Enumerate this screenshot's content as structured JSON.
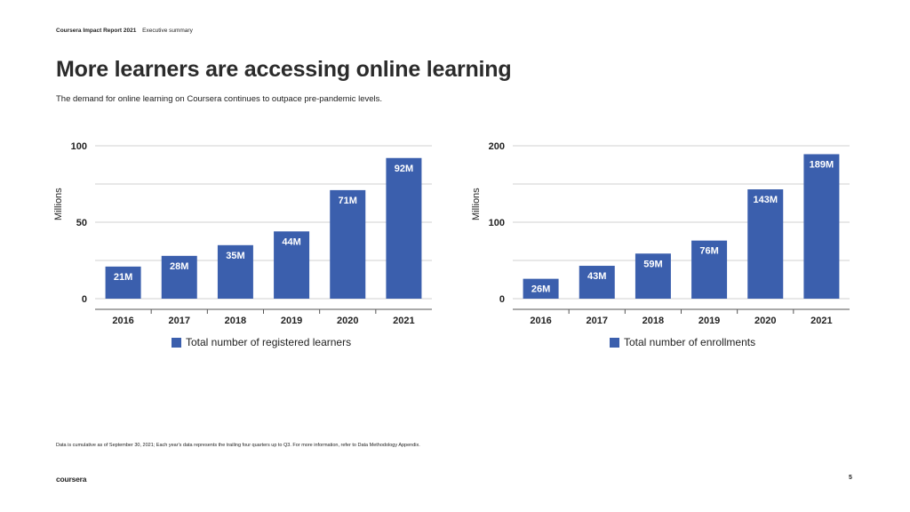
{
  "header": {
    "report": "Coursera Impact Report 2021",
    "section": "Executive summary"
  },
  "title": "More learners are accessing online learning",
  "subtitle": "The demand for online learning on Coursera continues to outpace pre-pandemic levels.",
  "footnote": "Data is cumulative as of September 30, 2021; Each year's data represents the trailing four quarters up to Q3. For more information, refer to Data Methodology Appendix.",
  "logo": "coursera",
  "page_number": "5",
  "colors": {
    "bar": "#3b5fad",
    "grid": "#d0d0d0",
    "axis": "#555555",
    "text": "#222222"
  },
  "chart_data": [
    {
      "type": "bar",
      "categories": [
        "2016",
        "2017",
        "2018",
        "2019",
        "2020",
        "2021"
      ],
      "series": [
        {
          "name": "Total number of registered learners",
          "values": [
            21,
            28,
            35,
            44,
            71,
            92
          ]
        }
      ],
      "data_labels": [
        "21M",
        "28M",
        "35M",
        "44M",
        "71M",
        "92M"
      ],
      "ylabel": "Millions",
      "yticks": [
        0,
        50,
        100
      ],
      "ylim": [
        0,
        100
      ],
      "grid": true,
      "legend": "bottom"
    },
    {
      "type": "bar",
      "categories": [
        "2016",
        "2017",
        "2018",
        "2019",
        "2020",
        "2021"
      ],
      "series": [
        {
          "name": "Total number of enrollments",
          "values": [
            26,
            43,
            59,
            76,
            143,
            189
          ]
        }
      ],
      "data_labels": [
        "26M",
        "43M",
        "59M",
        "76M",
        "143M",
        "189M"
      ],
      "ylabel": "Millions",
      "yticks": [
        0,
        100,
        200
      ],
      "ylim": [
        0,
        200
      ],
      "grid": true,
      "legend": "bottom"
    }
  ]
}
